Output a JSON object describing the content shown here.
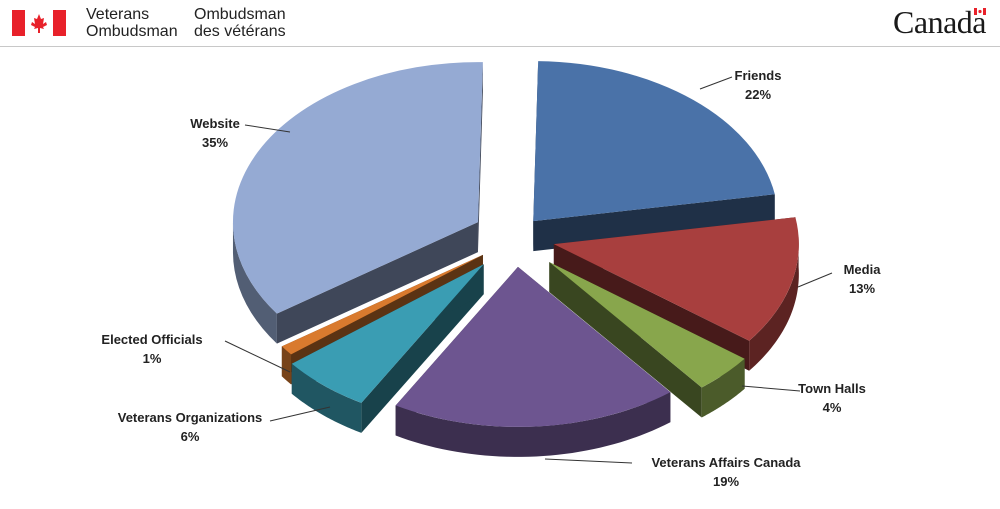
{
  "header": {
    "org_en_line1": "Veterans",
    "org_en_line2": "Ombudsman",
    "org_fr_line1": "Ombudsman",
    "org_fr_line2": "des vétérans",
    "wordmark": "Canada",
    "flag_icon": "maple-leaf-flag-icon",
    "flag_color": "#e8212a"
  },
  "chart_data": {
    "type": "pie",
    "title": "",
    "slices": [
      {
        "label": "Friends",
        "value": 22,
        "display": "22%",
        "color": "#4a72a8"
      },
      {
        "label": "Media",
        "value": 13,
        "display": "13%",
        "color": "#a83f3e"
      },
      {
        "label": "Town Halls",
        "value": 4,
        "display": "4%",
        "color": "#88a64c"
      },
      {
        "label": "Veterans Affairs Canada",
        "value": 19,
        "display": "19%",
        "color": "#6d5590"
      },
      {
        "label": "Veterans Organizations",
        "value": 6,
        "display": "6%",
        "color": "#3a9db3"
      },
      {
        "label": "Elected Officials",
        "value": 1,
        "display": "1%",
        "color": "#d97a2e"
      },
      {
        "label": "Website",
        "value": 35,
        "display": "35%",
        "color": "#95aad3"
      }
    ],
    "style": "3d-exploded"
  }
}
